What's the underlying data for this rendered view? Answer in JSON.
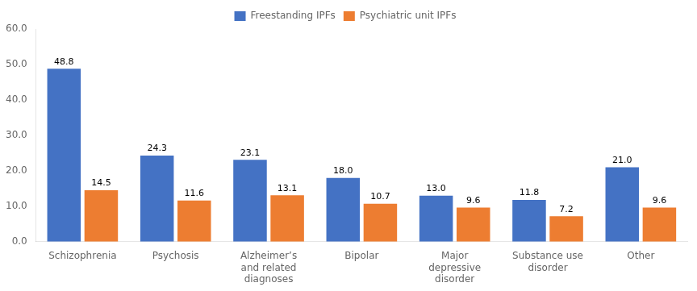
{
  "chart_data": {
    "type": "bar",
    "categories": [
      "Schizophrenia",
      "Psychosis",
      "Alzheimer’s\nand related\ndiagnoses",
      "Bipolar",
      "Major\ndepressive\ndisorder",
      "Substance use\ndisorder",
      "Other"
    ],
    "series": [
      {
        "name": "Freestanding IPFs",
        "color": "#4472C4",
        "values": [
          48.8,
          24.3,
          23.1,
          18.0,
          13.0,
          11.8,
          21.0
        ],
        "value_labels": [
          "48.8",
          "24.3",
          "23.1",
          "18.0",
          "13.0",
          "11.8",
          "21.0"
        ]
      },
      {
        "name": "Psychiatric unit IPFs",
        "color": "#ED7D31",
        "values": [
          14.5,
          11.6,
          13.1,
          10.7,
          9.6,
          7.2,
          9.6
        ],
        "value_labels": [
          "14.5",
          "11.6",
          "13.1",
          "10.7",
          "9.6",
          "7.2",
          "9.6"
        ]
      }
    ],
    "ylim": [
      0,
      60
    ],
    "yticks": [
      {
        "value": 0,
        "label": "0.0"
      },
      {
        "value": 10,
        "label": "10.0"
      },
      {
        "value": 20,
        "label": "20.0"
      },
      {
        "value": 30,
        "label": "30.0"
      },
      {
        "value": 40,
        "label": "40.0"
      },
      {
        "value": 50,
        "label": "50.0"
      },
      {
        "value": 60,
        "label": "60.0"
      }
    ],
    "grid": false,
    "legend": "top",
    "data_labels": true
  }
}
